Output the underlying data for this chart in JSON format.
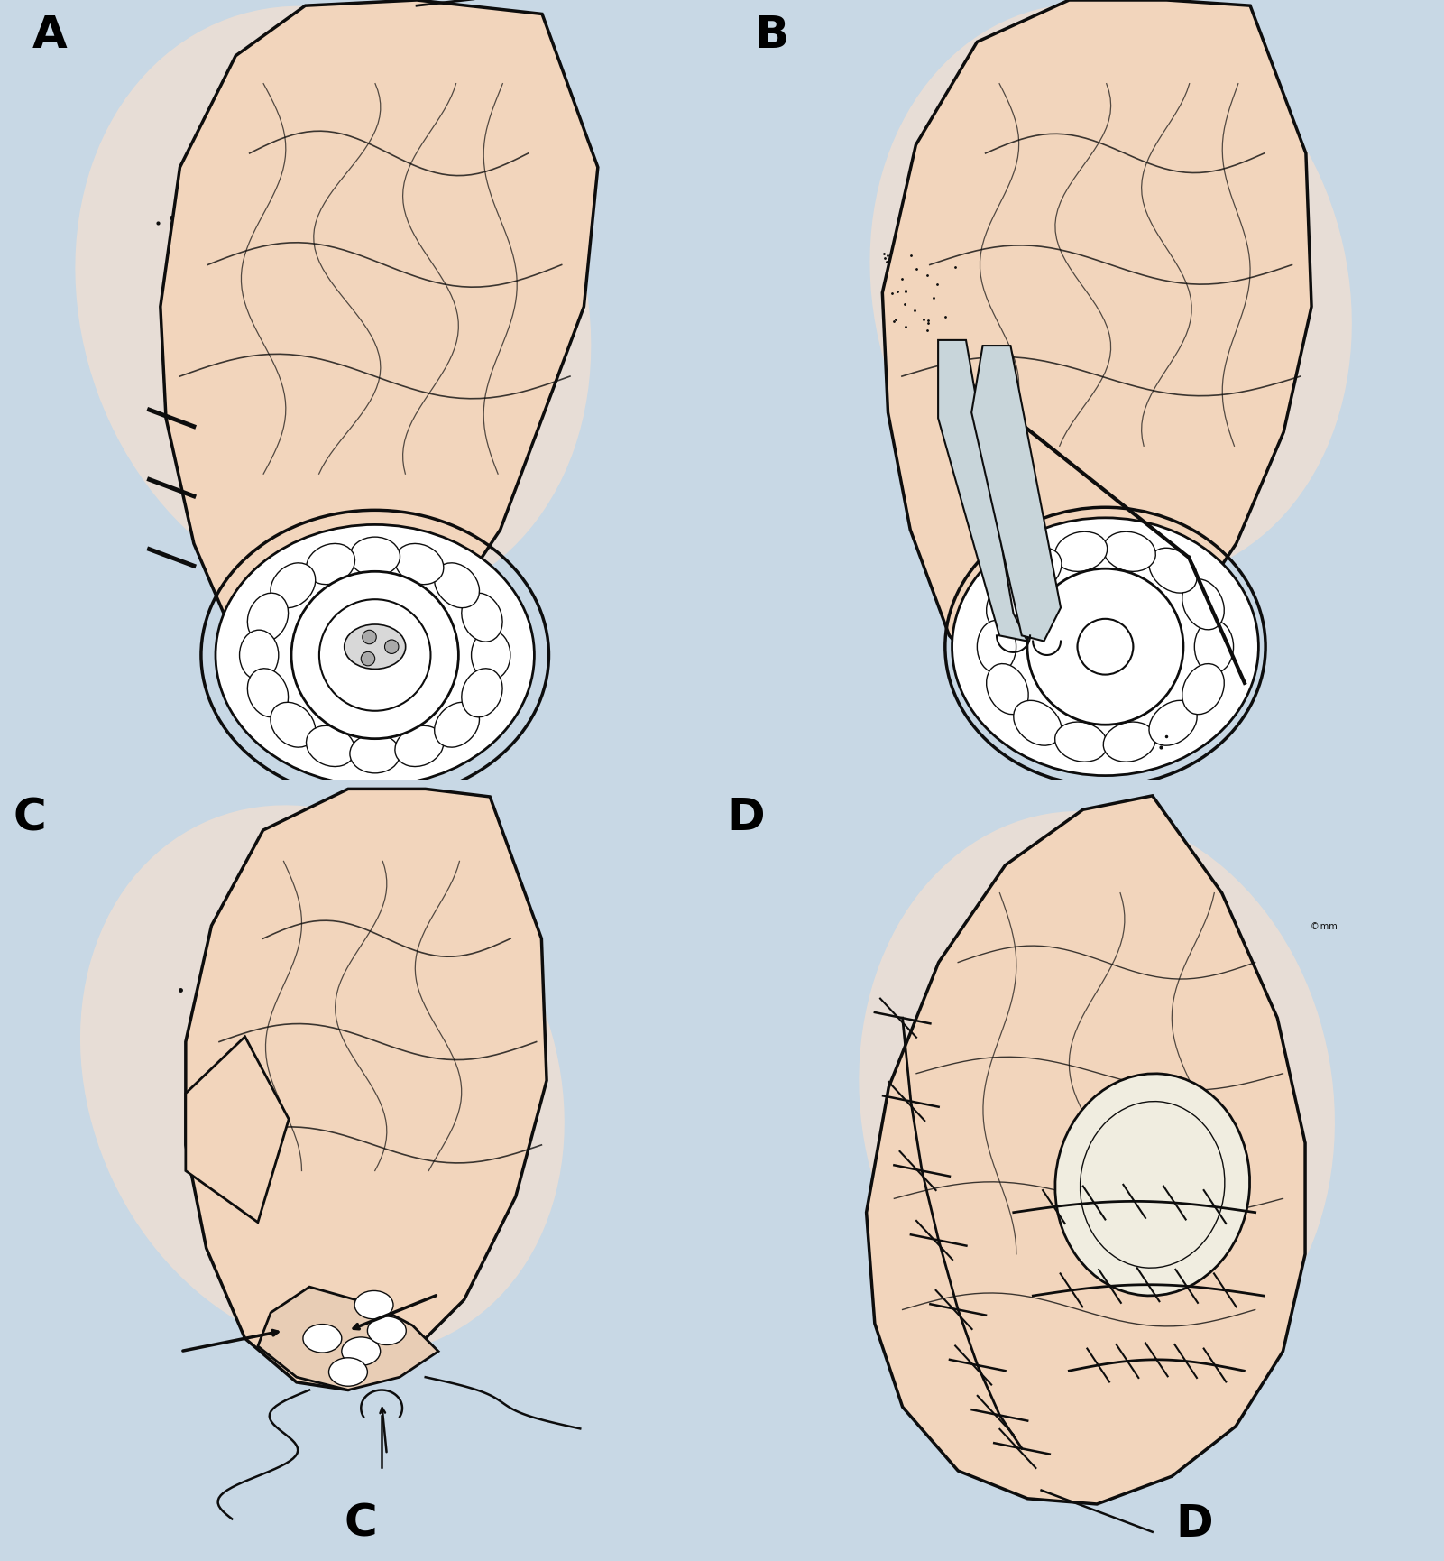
{
  "bg_color": "#c8d8e5",
  "skin_color": "#f2d5bc",
  "skin_mid": "#e8c4a5",
  "white_fill": "#ffffff",
  "line_col": "#0d0d0d",
  "peach_glow": "#f5e0d0",
  "gray_blade": "#a8b8c0",
  "figsize": [
    16.01,
    17.3
  ],
  "dpi": 100,
  "label_fs": 36,
  "label_A": "A",
  "label_B": "B",
  "label_C": "C",
  "label_D": "D"
}
